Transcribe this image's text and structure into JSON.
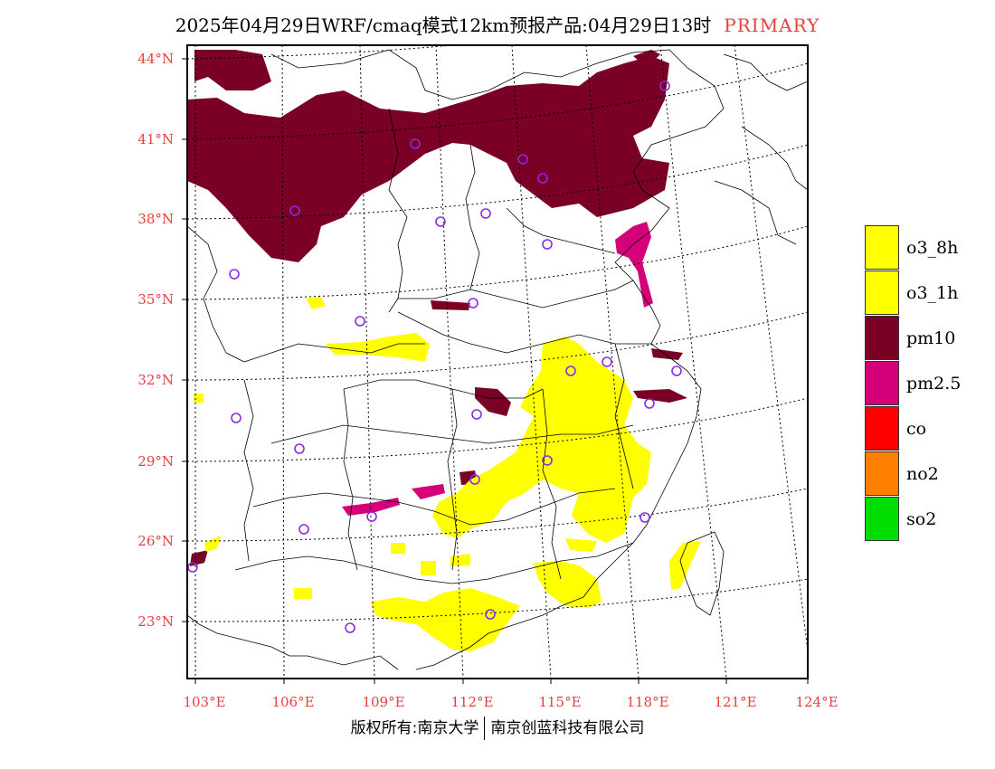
{
  "title": {
    "main": "2025年04月29日WRF/cmaq模式12km预报产品:04月29日13时",
    "tag": "PRIMARY"
  },
  "colors": {
    "o3_8h": "#ffff00",
    "o3_1h": "#ffff00",
    "pm10": "#7a0026",
    "pm25": "#d4007a",
    "co": "#ff0000",
    "no2": "#ff7f00",
    "so2": "#00dd00",
    "axis_label": "#e8403c",
    "station": "#8a2be2"
  },
  "lat_labels": [
    "44°N",
    "41°N",
    "38°N",
    "35°N",
    "32°N",
    "29°N",
    "26°N",
    "23°N"
  ],
  "lon_labels": [
    "103°E",
    "106°E",
    "109°E",
    "112°E",
    "115°E",
    "118°E",
    "121°E",
    "124°E"
  ],
  "legend": [
    {
      "label": "o3_8h",
      "color": "#ffff00"
    },
    {
      "label": "o3_1h",
      "color": "#ffff00"
    },
    {
      "label": "pm10",
      "color": "#7a0026"
    },
    {
      "label": "pm2.5",
      "color": "#d4007a"
    },
    {
      "label": "co",
      "color": "#ff0000"
    },
    {
      "label": "no2",
      "color": "#ff7f00"
    },
    {
      "label": "so2",
      "color": "#00dd00"
    }
  ],
  "footer": {
    "left": "版权所有:南京大学",
    "right": "南京创蓝科技有限公司"
  }
}
